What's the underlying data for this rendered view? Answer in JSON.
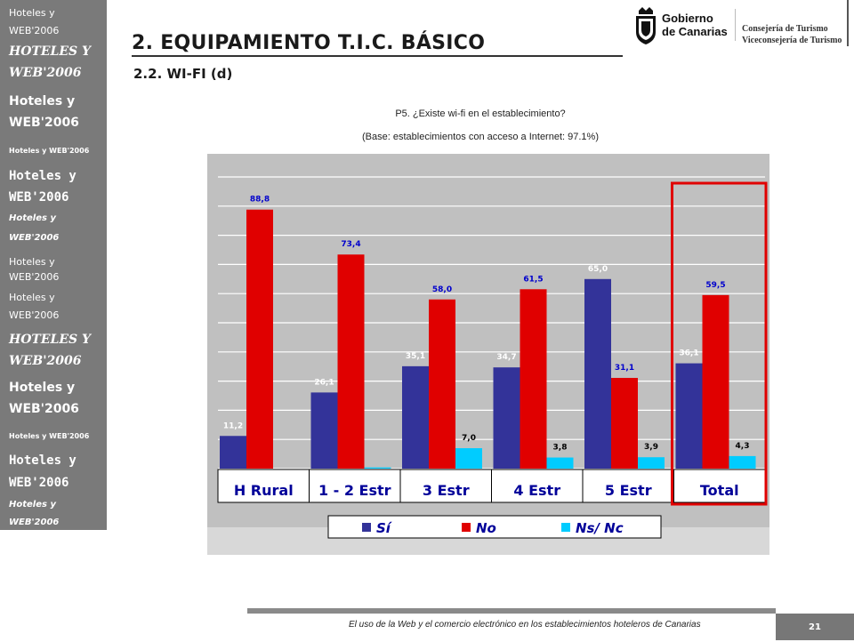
{
  "sidebar": {
    "items": [
      "Hoteles y",
      "WEB'2006",
      "HOTELES Y",
      "WEB'2006",
      "Hoteles y",
      "WEB'2006",
      "Hoteles y WEB'2006",
      "Hoteles y",
      "WEB'2006",
      "Hoteles y",
      "WEB'2006",
      "Hoteles y",
      "WEB'2006",
      "Hoteles y",
      "WEB'2006",
      "HOTELES Y",
      "WEB'2006",
      "Hoteles y",
      "WEB'2006",
      "Hoteles y WEB'2006",
      "Hoteles y",
      "WEB'2006",
      "Hoteles y",
      "WEB'2006"
    ]
  },
  "header": {
    "title": "2. EQUIPAMIENTO T.I.C. BÁSICO",
    "subtitle": "2.2. WI-FI (d)"
  },
  "logos": {
    "gobierno_line1": "Gobierno",
    "gobierno_line2": "de Canarias",
    "consejeria": "Consejería de Turismo",
    "viceconsejeria": "Viceconsejería de Turismo"
  },
  "question": {
    "text": "P5. ¿Existe wi-fi en el establecimiento?",
    "base": "(Base: establecimientos con acceso a Internet: 97.1%)"
  },
  "chart_data": {
    "type": "bar",
    "categories": [
      "H Rural",
      "1 - 2 Estr",
      "3 Estr",
      "4 Estr",
      "5 Estr",
      "Total"
    ],
    "series": [
      {
        "name": "Sí",
        "color": "#333399",
        "values": [
          11.2,
          26.1,
          35.1,
          34.7,
          65.0,
          36.1
        ],
        "labels": [
          "11,2",
          "26,1",
          "35,1",
          "34,7",
          "65,0",
          "36,1"
        ]
      },
      {
        "name": "No",
        "color": "#e00000",
        "values": [
          88.8,
          73.4,
          58.0,
          61.5,
          31.1,
          59.5
        ],
        "labels": [
          "88,8",
          "73,4",
          "58,0",
          "61,5",
          "31,1",
          "59,5"
        ]
      },
      {
        "name": "Ns/ Nc",
        "color": "#00ccff",
        "values": [
          0,
          0.4,
          7.0,
          3.8,
          3.9,
          4.3
        ],
        "labels": [
          "",
          "",
          "7,0",
          "3,8",
          "3,9",
          "4,3"
        ]
      }
    ],
    "ylim": [
      0,
      100
    ],
    "grid": true,
    "legend": "bottom",
    "highlight_category": "Total",
    "colors": {
      "plot_bg": "#c0c0c0",
      "grid": "#ffffff",
      "highlight": "#e00000",
      "axis_box": "#ffffff"
    }
  },
  "footer": {
    "text": "El uso de la Web y el comercio electrónico en los establecimientos hoteleros de Canarias",
    "page": "21"
  }
}
